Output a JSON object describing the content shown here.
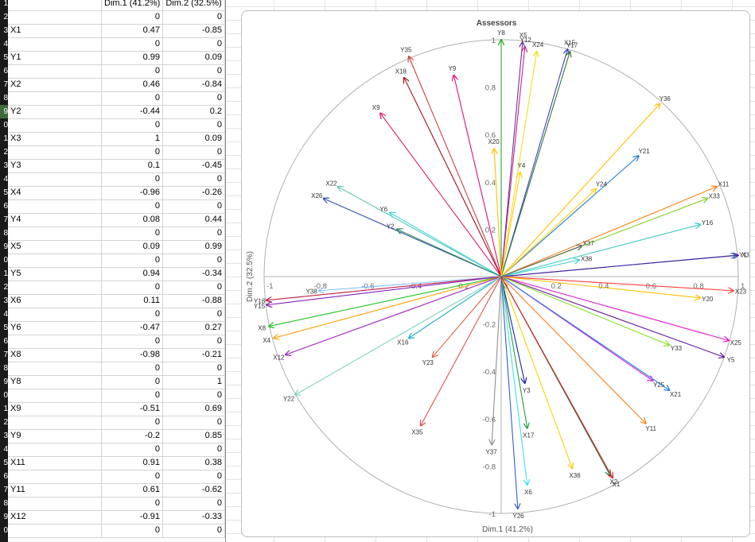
{
  "sheet": {
    "row_numbers": [
      "1",
      "2",
      "3",
      "4",
      "5",
      "6",
      "7",
      "8",
      "9",
      "0",
      "1",
      "2",
      "3",
      "4",
      "5",
      "6",
      "7",
      "8",
      "9",
      "0",
      "1",
      "2",
      "3",
      "4",
      "5",
      "6",
      "7",
      "8",
      "9",
      "0",
      "1",
      "2",
      "3",
      "4",
      "5",
      "6",
      "7",
      "8",
      "9",
      "0"
    ],
    "header": {
      "col_b": "Dim.1 (41.2%)",
      "col_c": "Dim.2 (32.5%)"
    },
    "rows": [
      {
        "label": "X1",
        "dim1": "0.47",
        "dim2": "-0.85"
      },
      {
        "label": "Y1",
        "dim1": "0.99",
        "dim2": "0.09"
      },
      {
        "label": "X2",
        "dim1": "0.46",
        "dim2": "-0.84"
      },
      {
        "label": "Y2",
        "dim1": "-0.44",
        "dim2": "0.2"
      },
      {
        "label": "X3",
        "dim1": "1",
        "dim2": "0.09"
      },
      {
        "label": "Y3",
        "dim1": "0.1",
        "dim2": "-0.45"
      },
      {
        "label": "X4",
        "dim1": "-0.96",
        "dim2": "-0.26"
      },
      {
        "label": "Y4",
        "dim1": "0.08",
        "dim2": "0.44"
      },
      {
        "label": "X5",
        "dim1": "0.09",
        "dim2": "0.99"
      },
      {
        "label": "Y5",
        "dim1": "0.94",
        "dim2": "-0.34"
      },
      {
        "label": "X6",
        "dim1": "0.11",
        "dim2": "-0.88"
      },
      {
        "label": "Y6",
        "dim1": "-0.47",
        "dim2": "0.27"
      },
      {
        "label": "X8",
        "dim1": "-0.98",
        "dim2": "-0.21"
      },
      {
        "label": "Y8",
        "dim1": "0",
        "dim2": "1"
      },
      {
        "label": "X9",
        "dim1": "-0.51",
        "dim2": "0.69"
      },
      {
        "label": "Y9",
        "dim1": "-0.2",
        "dim2": "0.85"
      },
      {
        "label": "X11",
        "dim1": "0.91",
        "dim2": "0.38"
      },
      {
        "label": "Y11",
        "dim1": "0.61",
        "dim2": "-0.62"
      },
      {
        "label": "X12",
        "dim1": "-0.91",
        "dim2": "-0.33"
      },
      {
        "label": "",
        "dim1": "0",
        "dim2": "0"
      }
    ],
    "zero": "0"
  },
  "chart_data": {
    "type": "scatter",
    "title": "Assessors",
    "xlabel": "Dim.1 (41.2%)",
    "ylabel": "Dim.2 (32.5%)",
    "xlim": [
      -1,
      1
    ],
    "ylim": [
      -1,
      1
    ],
    "x_ticks": [
      "-1",
      "-0.8",
      "-0.6",
      "-0.4",
      "-0.2",
      "0",
      "0.2",
      "0.4",
      "0.6",
      "0.8",
      "1"
    ],
    "y_ticks": [
      "1",
      "0.8",
      "0.6",
      "0.4",
      "0.2",
      "0",
      "-0.2",
      "-0.4",
      "-0.6",
      "-0.8",
      "-1"
    ],
    "arrows": [
      {
        "name": "Y8",
        "x": 0,
        "y": 1,
        "color": "#22aa22"
      },
      {
        "name": "X5",
        "x": 0.09,
        "y": 0.99,
        "color": "#7030a0"
      },
      {
        "name": "Y12",
        "x": 0.1,
        "y": 0.97,
        "color": "#cc2288"
      },
      {
        "name": "X24",
        "x": 0.15,
        "y": 0.95,
        "color": "#f0e020"
      },
      {
        "name": "X15",
        "x": 0.28,
        "y": 0.96,
        "color": "#4040d0"
      },
      {
        "name": "Y17",
        "x": 0.29,
        "y": 0.95,
        "color": "#2e7d32"
      },
      {
        "name": "Y35",
        "x": -0.39,
        "y": 0.93,
        "color": "#d04040"
      },
      {
        "name": "X18",
        "x": -0.41,
        "y": 0.84,
        "color": "#a01020"
      },
      {
        "name": "Y9",
        "x": -0.2,
        "y": 0.85,
        "color": "#e0107a"
      },
      {
        "name": "X9",
        "x": -0.51,
        "y": 0.69,
        "color": "#e02070"
      },
      {
        "name": "Y36",
        "x": 0.67,
        "y": 0.73,
        "color": "#ffc000"
      },
      {
        "name": "X20",
        "x": -0.03,
        "y": 0.54,
        "color": "#ffc000"
      },
      {
        "name": "Y21",
        "x": 0.58,
        "y": 0.51,
        "color": "#1f77d0"
      },
      {
        "name": "Y4",
        "x": 0.08,
        "y": 0.44,
        "color": "#ffd000"
      },
      {
        "name": "Y24",
        "x": 0.4,
        "y": 0.37,
        "color": "#ffd000"
      },
      {
        "name": "X11",
        "x": 0.91,
        "y": 0.38,
        "color": "#ff7f0e"
      },
      {
        "name": "X33",
        "x": 0.87,
        "y": 0.33,
        "color": "#80d020"
      },
      {
        "name": "Y16",
        "x": 0.84,
        "y": 0.22,
        "color": "#40c8c8"
      },
      {
        "name": "X22",
        "x": -0.69,
        "y": 0.38,
        "color": "#5ec8b8"
      },
      {
        "name": "X26",
        "x": -0.75,
        "y": 0.33,
        "color": "#3050b0"
      },
      {
        "name": "Y6",
        "x": -0.47,
        "y": 0.27,
        "color": "#40d8e0"
      },
      {
        "name": "Y2",
        "x": -0.44,
        "y": 0.2,
        "color": "#2e8b57"
      },
      {
        "name": "X37",
        "x": 0.34,
        "y": 0.13,
        "color": "#606060"
      },
      {
        "name": "X38",
        "x": 0.33,
        "y": 0.07,
        "color": "#40d0d0"
      },
      {
        "name": "Y1",
        "x": 0.99,
        "y": 0.09,
        "color": "#2080c0"
      },
      {
        "name": "X3",
        "x": 1,
        "y": 0.09,
        "color": "#5020a0"
      },
      {
        "name": "Y38",
        "x": -0.77,
        "y": -0.06,
        "color": "#80c0ff"
      },
      {
        "name": "Y18",
        "x": -0.99,
        "y": -0.1,
        "color": "#c02040"
      },
      {
        "name": "Y15",
        "x": -0.99,
        "y": -0.12,
        "color": "#8020c0"
      },
      {
        "name": "X23",
        "x": 0.98,
        "y": -0.06,
        "color": "#ff4040"
      },
      {
        "name": "Y20",
        "x": 0.84,
        "y": -0.09,
        "color": "#ffc000"
      },
      {
        "name": "X8",
        "x": -0.98,
        "y": -0.21,
        "color": "#20c020"
      },
      {
        "name": "X4",
        "x": -0.96,
        "y": -0.26,
        "color": "#ffa000"
      },
      {
        "name": "X12",
        "x": -0.91,
        "y": -0.33,
        "color": "#a020c0"
      },
      {
        "name": "X16",
        "x": -0.39,
        "y": -0.26,
        "color": "#20b0c0"
      },
      {
        "name": "Y23",
        "x": -0.29,
        "y": -0.34,
        "color": "#e06040"
      },
      {
        "name": "Y22",
        "x": -0.87,
        "y": -0.5,
        "color": "#80d0c0"
      },
      {
        "name": "X35",
        "x": -0.34,
        "y": -0.63,
        "color": "#e05050"
      },
      {
        "name": "Y37",
        "x": -0.04,
        "y": -0.71,
        "color": "#909090"
      },
      {
        "name": "X25",
        "x": 0.96,
        "y": -0.27,
        "color": "#e020d0"
      },
      {
        "name": "Y5",
        "x": 0.94,
        "y": -0.34,
        "color": "#6a1b9a"
      },
      {
        "name": "Y33",
        "x": 0.71,
        "y": -0.29,
        "color": "#80e020"
      },
      {
        "name": "Y25",
        "x": 0.64,
        "y": -0.44,
        "color": "#e020e0"
      },
      {
        "name": "X21",
        "x": 0.71,
        "y": -0.48,
        "color": "#2080e0"
      },
      {
        "name": "Y11",
        "x": 0.61,
        "y": -0.62,
        "color": "#ff8020"
      },
      {
        "name": "Y3",
        "x": 0.1,
        "y": -0.45,
        "color": "#2020b0"
      },
      {
        "name": "X17",
        "x": 0.11,
        "y": -0.64,
        "color": "#20a040"
      },
      {
        "name": "X36",
        "x": 0.3,
        "y": -0.81,
        "color": "#ffd000"
      },
      {
        "name": "X6",
        "x": 0.11,
        "y": -0.88,
        "color": "#40e0f0"
      },
      {
        "name": "Y26",
        "x": 0.07,
        "y": -0.98,
        "color": "#3060d0"
      },
      {
        "name": "X2",
        "x": 0.46,
        "y": -0.84,
        "color": "#208040"
      },
      {
        "name": "X1",
        "x": 0.47,
        "y": -0.85,
        "color": "#e02020"
      }
    ]
  }
}
